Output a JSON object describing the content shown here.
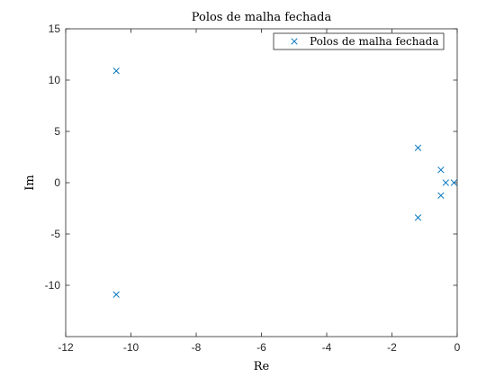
{
  "chart_data": {
    "type": "scatter",
    "title": "Polos de malha fechada",
    "xlabel": "Re",
    "ylabel": "Im",
    "xlim": [
      -12,
      0
    ],
    "ylim": [
      -15,
      15
    ],
    "xticks": [
      -12,
      -10,
      -8,
      -6,
      -4,
      -2,
      0
    ],
    "yticks": [
      -10,
      -5,
      0,
      5,
      10,
      15
    ],
    "xtick_labels": [
      "-12",
      "-10",
      "-8",
      "-6",
      "-4",
      "-2",
      "0"
    ],
    "ytick_labels": [
      "-10",
      "-5",
      "0",
      "5",
      "10",
      "15"
    ],
    "grid": false,
    "legend": {
      "position": "top-right",
      "entries": [
        "Polos de malha fechada"
      ]
    },
    "series": [
      {
        "name": "Polos de malha fechada",
        "marker": "x",
        "color": "#0072BD",
        "points": [
          {
            "x": -10.45,
            "y": 10.9
          },
          {
            "x": -10.45,
            "y": -10.9
          },
          {
            "x": -1.2,
            "y": 3.4
          },
          {
            "x": -1.2,
            "y": -3.4
          },
          {
            "x": -0.5,
            "y": 1.25
          },
          {
            "x": -0.5,
            "y": -1.25
          },
          {
            "x": -0.35,
            "y": 0
          },
          {
            "x": -0.1,
            "y": 0
          }
        ]
      }
    ]
  }
}
